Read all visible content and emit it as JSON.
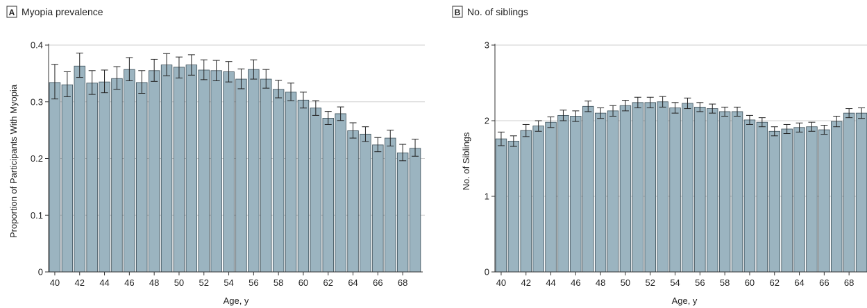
{
  "style": {
    "bar_fill": "#9bb4c0",
    "bar_stroke": "#3a4d57",
    "grid_color": "#cfcfcf",
    "axis_color": "#333333"
  },
  "chart_data": [
    {
      "type": "bar",
      "panel_letter": "A",
      "title": "Myopia prevalence",
      "xlabel": "Age, y",
      "ylabel": "Proportion of Participants With Myopia",
      "ylim": [
        0,
        0.4
      ],
      "yticks": [
        0,
        0.1,
        0.2,
        0.3,
        0.4
      ],
      "ytick_labels": [
        "0",
        "0.1",
        "0.2",
        "0.3",
        "0.4"
      ],
      "grid": "horizontal",
      "categories": [
        40,
        41,
        42,
        43,
        44,
        45,
        46,
        47,
        48,
        49,
        50,
        51,
        52,
        53,
        54,
        55,
        56,
        57,
        58,
        59,
        60,
        61,
        62,
        63,
        64,
        65,
        66,
        67,
        68,
        69
      ],
      "xtick_labels": [
        "40",
        "42",
        "44",
        "46",
        "48",
        "50",
        "52",
        "54",
        "56",
        "58",
        "60",
        "62",
        "64",
        "66",
        "68"
      ],
      "values": [
        0.334,
        0.33,
        0.363,
        0.333,
        0.335,
        0.341,
        0.357,
        0.334,
        0.355,
        0.365,
        0.361,
        0.365,
        0.356,
        0.355,
        0.353,
        0.34,
        0.357,
        0.34,
        0.322,
        0.317,
        0.303,
        0.289,
        0.271,
        0.279,
        0.249,
        0.243,
        0.224,
        0.236,
        0.21,
        0.218
      ],
      "error_upper": [
        0.366,
        0.353,
        0.386,
        0.355,
        0.356,
        0.362,
        0.378,
        0.355,
        0.375,
        0.385,
        0.379,
        0.383,
        0.374,
        0.373,
        0.371,
        0.358,
        0.374,
        0.357,
        0.338,
        0.333,
        0.317,
        0.302,
        0.283,
        0.291,
        0.263,
        0.256,
        0.237,
        0.25,
        0.225,
        0.234
      ],
      "error_lower": [
        0.305,
        0.309,
        0.343,
        0.313,
        0.316,
        0.322,
        0.337,
        0.315,
        0.336,
        0.346,
        0.342,
        0.347,
        0.339,
        0.337,
        0.335,
        0.323,
        0.34,
        0.324,
        0.307,
        0.302,
        0.289,
        0.276,
        0.26,
        0.267,
        0.236,
        0.23,
        0.212,
        0.222,
        0.196,
        0.204
      ]
    },
    {
      "type": "bar",
      "panel_letter": "B",
      "title": "No. of siblings",
      "xlabel": "Age, y",
      "ylabel": "No. of Siblings",
      "ylim": [
        0,
        3
      ],
      "yticks": [
        0,
        1,
        2,
        3
      ],
      "ytick_labels": [
        "0",
        "1",
        "2",
        "3"
      ],
      "grid": "horizontal",
      "categories": [
        40,
        41,
        42,
        43,
        44,
        45,
        46,
        47,
        48,
        49,
        50,
        51,
        52,
        53,
        54,
        55,
        56,
        57,
        58,
        59,
        60,
        61,
        62,
        63,
        64,
        65,
        66,
        67,
        68,
        69
      ],
      "xtick_labels": [
        "40",
        "42",
        "44",
        "46",
        "48",
        "50",
        "52",
        "54",
        "56",
        "58",
        "60",
        "62",
        "64",
        "66",
        "68"
      ],
      "values": [
        1.76,
        1.73,
        1.87,
        1.93,
        1.98,
        2.07,
        2.06,
        2.19,
        2.1,
        2.13,
        2.2,
        2.24,
        2.24,
        2.25,
        2.17,
        2.23,
        2.18,
        2.16,
        2.12,
        2.12,
        2.01,
        1.98,
        1.86,
        1.89,
        1.91,
        1.92,
        1.88,
        1.99,
        2.1,
        2.1
      ],
      "error_upper": [
        1.85,
        1.8,
        1.95,
        2.0,
        2.05,
        2.14,
        2.13,
        2.26,
        2.17,
        2.2,
        2.27,
        2.31,
        2.31,
        2.32,
        2.24,
        2.3,
        2.24,
        2.22,
        2.18,
        2.18,
        2.07,
        2.04,
        1.92,
        1.95,
        1.97,
        1.98,
        1.94,
        2.06,
        2.16,
        2.17
      ],
      "error_lower": [
        1.67,
        1.66,
        1.79,
        1.86,
        1.91,
        2.0,
        1.99,
        2.12,
        2.03,
        2.06,
        2.13,
        2.17,
        2.17,
        2.18,
        2.1,
        2.16,
        2.12,
        2.1,
        2.06,
        2.06,
        1.95,
        1.92,
        1.8,
        1.83,
        1.85,
        1.86,
        1.82,
        1.92,
        2.04,
        2.03
      ]
    }
  ]
}
